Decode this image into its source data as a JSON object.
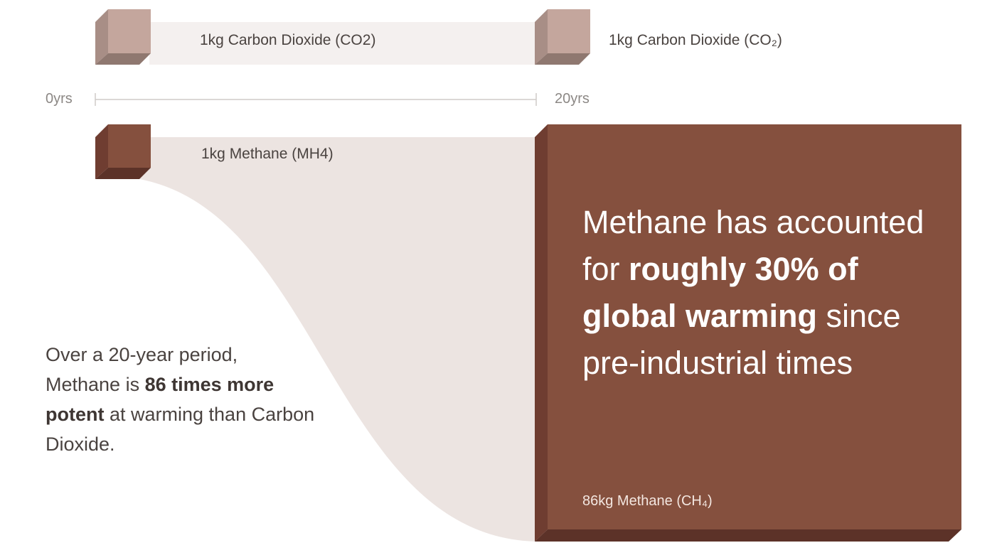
{
  "colors": {
    "co2_front": "#c4a69d",
    "co2_side": "#a88e86",
    "co2_bottom": "#8f7870",
    "co2_band": "#f4f0ef",
    "ch4_front": "#85503e",
    "ch4_side": "#6f3d31",
    "ch4_bottom": "#5c3228",
    "ch4_band": "#ece4e1",
    "axis": "#cfcbc9"
  },
  "co2": {
    "start_label": "1kg Carbon Dioxide (CO2)",
    "end_label": "1kg Carbon Dioxide (CO₂)"
  },
  "timeline": {
    "start": "0yrs",
    "end": "20yrs"
  },
  "methane": {
    "start_label": "1kg Methane (MH4)",
    "end_label": "86kg Methane (CH₄)"
  },
  "left_text": {
    "part1": "Over a 20-year period, Methane is ",
    "bold": "86 times more potent",
    "part2": " at warming than Carbon Dioxide."
  },
  "big_text": {
    "part1": "Methane has accounted for ",
    "bold": "roughly 30% of global warming",
    "part2": " since pre-industrial times"
  }
}
